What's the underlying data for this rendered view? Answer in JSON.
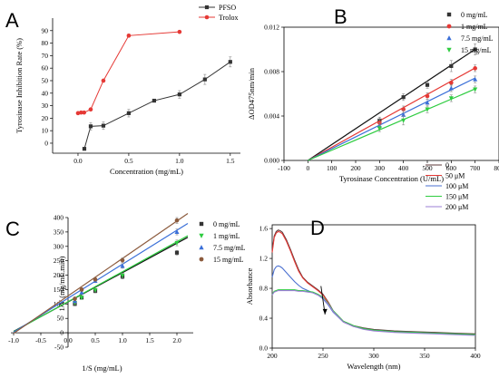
{
  "chart_data": [
    {
      "panel": "A",
      "type": "line",
      "xlabel": "Concentration (mg/mL)",
      "ylabel": "Tyrosinase Inhibition Rate (%)",
      "xlim": [
        -0.25,
        1.6
      ],
      "ylim": [
        -8,
        100
      ],
      "xticks": [
        0.0,
        0.5,
        1.0,
        1.5
      ],
      "yticks": [
        0,
        10,
        20,
        30,
        40,
        50,
        60,
        70,
        80,
        90
      ],
      "legend_position": "top-right",
      "series": [
        {
          "name": "PFSO",
          "color": "#333333",
          "marker": "square",
          "x": [
            0.0625,
            0.125,
            0.25,
            0.5,
            0.75,
            1.0,
            1.25,
            1.5
          ],
          "y": [
            -4.5,
            13.5,
            14,
            24,
            34,
            39,
            51,
            65
          ],
          "err": [
            0,
            3,
            3,
            3,
            1,
            3,
            4,
            4
          ]
        },
        {
          "name": "Trolox",
          "color": "#e53935",
          "marker": "circle",
          "x": [
            0.0,
            0.03,
            0.06,
            0.125,
            0.25,
            0.5,
            1.0
          ],
          "y": [
            24,
            24.5,
            24.5,
            27,
            50,
            86,
            89
          ],
          "err": [
            0,
            0,
            0,
            0,
            0,
            0,
            0
          ]
        }
      ]
    },
    {
      "panel": "B",
      "type": "scatter",
      "xlabel": "Tyrosinase Concentration (U/mL)",
      "ylabel": "ΔOD475nm/min",
      "xlim": [
        -100,
        800
      ],
      "ylim": [
        0,
        0.012
      ],
      "xticks": [
        -100,
        0,
        100,
        200,
        300,
        400,
        500,
        600,
        700,
        800
      ],
      "yticks": [
        0,
        0.004,
        0.008,
        0.012
      ],
      "ytick_labels": [
        "0.000",
        "0.004",
        "0.008",
        "0.012"
      ],
      "legend_position": "top-right",
      "series": [
        {
          "name": "0 mg/mL",
          "color": "#333333",
          "line_color": "#111111",
          "marker": "square",
          "x": [
            300,
            400,
            500,
            600,
            700
          ],
          "y": [
            0.0036,
            0.0057,
            0.0068,
            0.0085,
            0.01
          ],
          "err": [
            0.0003,
            0.0003,
            0.0003,
            0.0005,
            0.0005
          ],
          "fit": [
            0,
            1.43e-05
          ]
        },
        {
          "name": "1 mg/mL",
          "color": "#e53935",
          "line_color": "#e53935",
          "marker": "circle",
          "x": [
            300,
            400,
            500,
            600,
            700
          ],
          "y": [
            0.0034,
            0.0046,
            0.0058,
            0.007,
            0.0083
          ],
          "err": [
            0.0003,
            0.0003,
            0.0003,
            0.0003,
            0.0003
          ],
          "fit": [
            0,
            1.19e-05
          ]
        },
        {
          "name": "7.5 mg/mL",
          "color": "#3a6fd8",
          "line_color": "#3a6fd8",
          "marker": "triangle-up",
          "x": [
            300,
            400,
            500,
            600,
            700
          ],
          "y": [
            0.0031,
            0.0041,
            0.0052,
            0.0065,
            0.0073
          ],
          "err": [
            0.0003,
            0.0004,
            0.0003,
            0.0003,
            0.0003
          ],
          "fit": [
            0,
            1.06e-05
          ]
        },
        {
          "name": "15 mg/mL",
          "color": "#2ecc40",
          "line_color": "#2ecc40",
          "marker": "triangle-down",
          "x": [
            300,
            400,
            500,
            600,
            700
          ],
          "y": [
            0.0029,
            0.0036,
            0.0046,
            0.0056,
            0.0064
          ],
          "err": [
            0.0003,
            0.0004,
            0.0003,
            0.0003,
            0.0003
          ],
          "fit": [
            0,
            9.2e-06
          ]
        }
      ]
    },
    {
      "panel": "C",
      "type": "scatter",
      "xlabel": "1/S (mg/mL)",
      "ylabel": "1/V (mg/mL.min)",
      "xlim": [
        -1.05,
        2.3
      ],
      "ylim": [
        -50,
        400
      ],
      "xticks": [
        -1.0,
        -0.5,
        0.0,
        0.5,
        1.0,
        1.5,
        2.0
      ],
      "yticks": [
        -50,
        0,
        50,
        100,
        150,
        200,
        250,
        300,
        350,
        400
      ],
      "legend_position": "top-right",
      "series": [
        {
          "name": "0 mg/mL",
          "color": "#333333",
          "line_color": "#111111",
          "marker": "square",
          "x": [
            0.125,
            0.25,
            0.5,
            1.0,
            2.0
          ],
          "y": [
            100,
            122,
            145,
            195,
            278
          ],
          "err": [
            6,
            6,
            6,
            8,
            8
          ],
          "fit": [
            107,
            102
          ]
        },
        {
          "name": "1 mg/mL",
          "color": "#2ecc40",
          "line_color": "#2ecc40",
          "marker": "triangle-down",
          "x": [
            0.125,
            0.25,
            0.5,
            1.0,
            2.0
          ],
          "y": [
            104,
            122,
            148,
            199,
            312
          ],
          "err": [
            6,
            6,
            6,
            8,
            10
          ],
          "fit": [
            108,
            104
          ]
        },
        {
          "name": "7.5 mg/mL",
          "color": "#3a6fd8",
          "line_color": "#3a6fd8",
          "marker": "triangle-up",
          "x": [
            0.125,
            0.25,
            0.5,
            1.0,
            2.0
          ],
          "y": [
            110,
            140,
            180,
            232,
            350
          ],
          "err": [
            6,
            6,
            6,
            8,
            10
          ],
          "fit": [
            120,
            118
          ]
        },
        {
          "name": "15 mg/mL",
          "color": "#8b5a3c",
          "line_color": "#8b5a3c",
          "marker": "circle",
          "x": [
            0.125,
            0.25,
            0.5,
            1.0,
            2.0
          ],
          "y": [
            118,
            150,
            185,
            252,
            390
          ],
          "err": [
            6,
            6,
            6,
            8,
            10
          ],
          "fit": [
            128,
            130
          ]
        }
      ]
    },
    {
      "panel": "D",
      "type": "line",
      "xlabel": "Wavelength (nm)",
      "ylabel": "Absorbance",
      "xlim": [
        200,
        400
      ],
      "ylim": [
        0,
        1.65
      ],
      "xticks": [
        200,
        250,
        300,
        350,
        400
      ],
      "yticks": [
        0.0,
        0.4,
        0.8,
        1.2,
        1.6
      ],
      "legend_position": "top-right",
      "series": [
        {
          "name": "0",
          "color": "#5d3a3a",
          "x": [
            200,
            202,
            204,
            206,
            208,
            210,
            214,
            218,
            222,
            226,
            230,
            235,
            240,
            245,
            250,
            255,
            260,
            270,
            280,
            290,
            300,
            320,
            340,
            360,
            380,
            400
          ],
          "y": [
            1.3,
            1.5,
            1.56,
            1.58,
            1.57,
            1.55,
            1.45,
            1.32,
            1.18,
            1.05,
            0.95,
            0.88,
            0.83,
            0.78,
            0.72,
            0.62,
            0.5,
            0.36,
            0.3,
            0.27,
            0.25,
            0.23,
            0.22,
            0.21,
            0.2,
            0.19
          ]
        },
        {
          "name": "50 μM",
          "color": "#e53935",
          "x": [
            200,
            202,
            204,
            206,
            208,
            210,
            214,
            218,
            222,
            226,
            230,
            235,
            240,
            245,
            250,
            255,
            260,
            270,
            280,
            290,
            300,
            320,
            340,
            360,
            380,
            400
          ],
          "y": [
            1.28,
            1.48,
            1.54,
            1.56,
            1.55,
            1.53,
            1.43,
            1.3,
            1.16,
            1.03,
            0.94,
            0.87,
            0.82,
            0.77,
            0.71,
            0.61,
            0.49,
            0.35,
            0.29,
            0.26,
            0.24,
            0.22,
            0.21,
            0.2,
            0.19,
            0.18
          ]
        },
        {
          "name": "100 μM",
          "color": "#4a6fd0",
          "x": [
            200,
            202,
            204,
            206,
            208,
            210,
            214,
            218,
            222,
            226,
            230,
            235,
            240,
            245,
            250,
            255,
            260,
            270,
            280,
            290,
            300,
            320,
            340,
            360,
            380,
            400
          ],
          "y": [
            0.95,
            1.05,
            1.09,
            1.1,
            1.09,
            1.07,
            1.01,
            0.95,
            0.89,
            0.84,
            0.8,
            0.77,
            0.74,
            0.71,
            0.66,
            0.58,
            0.48,
            0.35,
            0.29,
            0.26,
            0.24,
            0.22,
            0.21,
            0.2,
            0.19,
            0.18
          ]
        },
        {
          "name": "150 μM",
          "color": "#2ecc40",
          "x": [
            200,
            202,
            204,
            206,
            208,
            210,
            214,
            218,
            222,
            226,
            230,
            235,
            240,
            245,
            250,
            255,
            260,
            270,
            280,
            290,
            300,
            320,
            340,
            360,
            380,
            400
          ],
          "y": [
            0.72,
            0.76,
            0.77,
            0.78,
            0.78,
            0.78,
            0.78,
            0.78,
            0.78,
            0.77,
            0.77,
            0.76,
            0.75,
            0.72,
            0.68,
            0.6,
            0.5,
            0.36,
            0.3,
            0.26,
            0.24,
            0.22,
            0.21,
            0.2,
            0.19,
            0.18
          ]
        },
        {
          "name": "200 μM",
          "color": "#9b7fd4",
          "x": [
            200,
            202,
            204,
            206,
            208,
            210,
            214,
            218,
            222,
            226,
            230,
            235,
            240,
            245,
            250,
            255,
            260,
            270,
            280,
            290,
            300,
            320,
            340,
            360,
            380,
            400
          ],
          "y": [
            0.71,
            0.75,
            0.76,
            0.77,
            0.77,
            0.77,
            0.77,
            0.77,
            0.77,
            0.76,
            0.76,
            0.75,
            0.74,
            0.71,
            0.67,
            0.59,
            0.49,
            0.35,
            0.29,
            0.25,
            0.23,
            0.21,
            0.2,
            0.19,
            0.18,
            0.17
          ]
        }
      ],
      "annotation": {
        "type": "arrow",
        "from": [
          248,
          0.83
        ],
        "to": [
          252,
          0.45
        ]
      }
    }
  ],
  "panel_labels": [
    "A",
    "B",
    "C",
    "D"
  ]
}
